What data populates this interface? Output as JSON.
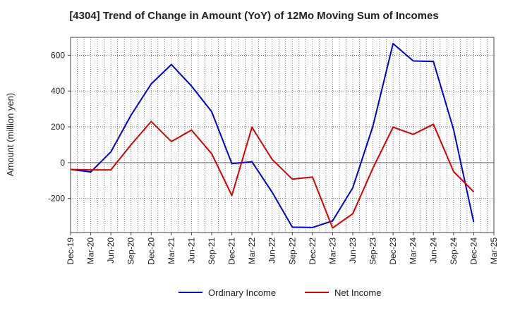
{
  "chart_data": {
    "type": "line",
    "title": "[4304]  Trend of Change in Amount (YoY) of 12Mo Moving Sum of Incomes",
    "xlabel": "",
    "ylabel": "Amount (million yen)",
    "ylim": [
      -390,
      700
    ],
    "yticks": [
      -200,
      0,
      200,
      400,
      600
    ],
    "grid": true,
    "legend_position": "bottom",
    "x": [
      "Dec-19",
      "Mar-20",
      "Jun-20",
      "Sep-20",
      "Dec-20",
      "Mar-21",
      "Jun-21",
      "Sep-21",
      "Dec-21",
      "Mar-22",
      "Jun-22",
      "Sep-22",
      "Dec-22",
      "Mar-23",
      "Jun-23",
      "Sep-23",
      "Dec-23",
      "Mar-24",
      "Jun-24",
      "Sep-24",
      "Dec-24",
      "Mar-25"
    ],
    "series": [
      {
        "name": "Ordinary Income",
        "color": "#0000dd",
        "values": [
          -38,
          -52,
          60,
          265,
          440,
          548,
          428,
          285,
          -5,
          5,
          -165,
          -360,
          -362,
          -325,
          -140,
          205,
          665,
          568,
          565,
          185,
          -332,
          null
        ]
      },
      {
        "name": "Net Income",
        "color": "#dd0000",
        "values": [
          -38,
          -40,
          -40,
          100,
          230,
          118,
          182,
          50,
          -183,
          198,
          18,
          -92,
          -80,
          -365,
          -285,
          -30,
          198,
          158,
          215,
          -50,
          -163,
          null
        ]
      }
    ]
  }
}
